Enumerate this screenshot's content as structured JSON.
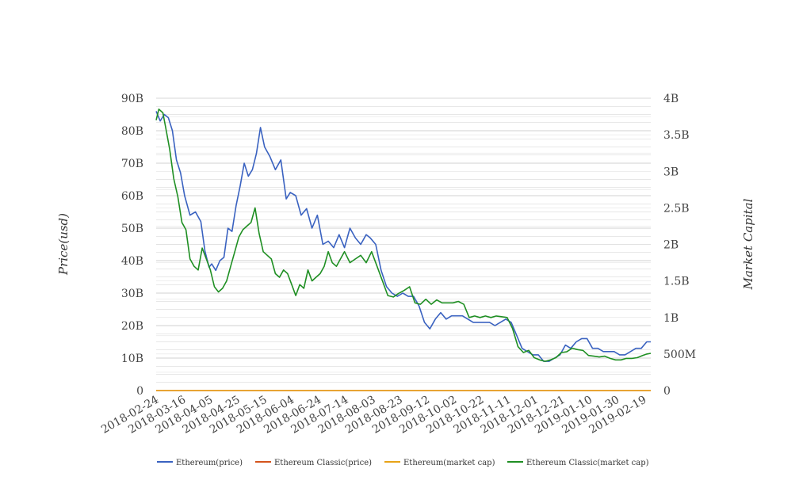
{
  "chart_data": {
    "type": "line",
    "title": "",
    "ylabel_left": "Price(usd)",
    "ylabel_right": "Market Capital",
    "ylim_left": [
      0,
      90000000000
    ],
    "ylim_right": [
      0,
      4000000000
    ],
    "left_tick_labels": [
      "0",
      "10B",
      "20B",
      "30B",
      "40B",
      "50B",
      "60B",
      "70B",
      "80B",
      "90B"
    ],
    "right_tick_labels": [
      "0",
      "500M",
      "1B",
      "1.5B",
      "2B",
      "2.5B",
      "3B",
      "3.5B",
      "4B"
    ],
    "x_tick_labels": [
      "2018-02-24",
      "2018-03-16",
      "2018-04-05",
      "2018-04-25",
      "2018-05-15",
      "2018-06-04",
      "2018-06-24",
      "2018-07-14",
      "2018-08-03",
      "2018-08-23",
      "2018-09-12",
      "2018-10-02",
      "2018-10-22",
      "2018-11-11",
      "2018-12-01",
      "2018-12-21",
      "2019-01-10",
      "2019-01-30",
      "2019-02-19"
    ],
    "x_range": [
      "2018-02-24",
      "2019-02-24"
    ],
    "grid": true,
    "legend_position": "bottom",
    "series": [
      {
        "name": "Ethereum(price)",
        "axis": "left",
        "color": "#3a62c0",
        "x": [
          "2018-02-24",
          "2018-02-27",
          "2018-03-02",
          "2018-03-05",
          "2018-03-08",
          "2018-03-11",
          "2018-03-14",
          "2018-03-17",
          "2018-03-21",
          "2018-03-25",
          "2018-03-29",
          "2018-04-01",
          "2018-04-04",
          "2018-04-06",
          "2018-04-09",
          "2018-04-12",
          "2018-04-15",
          "2018-04-18",
          "2018-04-21",
          "2018-04-24",
          "2018-04-27",
          "2018-04-30",
          "2018-05-03",
          "2018-05-06",
          "2018-05-09",
          "2018-05-12",
          "2018-05-15",
          "2018-05-19",
          "2018-05-23",
          "2018-05-27",
          "2018-05-31",
          "2018-06-03",
          "2018-06-07",
          "2018-06-11",
          "2018-06-15",
          "2018-06-19",
          "2018-06-23",
          "2018-06-27",
          "2018-07-01",
          "2018-07-05",
          "2018-07-09",
          "2018-07-13",
          "2018-07-17",
          "2018-07-21",
          "2018-07-25",
          "2018-07-29",
          "2018-08-01",
          "2018-08-05",
          "2018-08-09",
          "2018-08-13",
          "2018-08-17",
          "2018-08-21",
          "2018-08-25",
          "2018-08-29",
          "2018-09-02",
          "2018-09-06",
          "2018-09-10",
          "2018-09-14",
          "2018-09-18",
          "2018-09-22",
          "2018-09-26",
          "2018-09-30",
          "2018-10-04",
          "2018-10-08",
          "2018-10-12",
          "2018-10-16",
          "2018-10-20",
          "2018-10-24",
          "2018-10-28",
          "2018-11-01",
          "2018-11-05",
          "2018-11-09",
          "2018-11-13",
          "2018-11-17",
          "2018-11-21",
          "2018-11-25",
          "2018-11-29",
          "2018-12-03",
          "2018-12-07",
          "2018-12-11",
          "2018-12-15",
          "2018-12-19",
          "2018-12-23",
          "2018-12-27",
          "2018-12-31",
          "2019-01-04",
          "2019-01-08",
          "2019-01-12",
          "2019-01-16",
          "2019-01-20",
          "2019-01-24",
          "2019-01-28",
          "2019-02-01",
          "2019-02-05",
          "2019-02-09",
          "2019-02-13",
          "2019-02-17",
          "2019-02-21",
          "2019-02-24"
        ],
        "y": [
          86000000000,
          83000000000,
          85000000000,
          84000000000,
          80000000000,
          71000000000,
          67000000000,
          60000000000,
          54000000000,
          55000000000,
          52000000000,
          43000000000,
          38000000000,
          39000000000,
          37000000000,
          40000000000,
          41000000000,
          50000000000,
          49000000000,
          57000000000,
          63000000000,
          70000000000,
          66000000000,
          68000000000,
          73000000000,
          81000000000,
          75000000000,
          72000000000,
          68000000000,
          71000000000,
          59000000000,
          61000000000,
          60000000000,
          54000000000,
          56000000000,
          50000000000,
          54000000000,
          45000000000,
          46000000000,
          44000000000,
          48000000000,
          44000000000,
          50000000000,
          47000000000,
          45000000000,
          48000000000,
          47000000000,
          45000000000,
          37000000000,
          32000000000,
          30000000000,
          29000000000,
          30000000000,
          29000000000,
          29000000000,
          26000000000,
          21000000000,
          19000000000,
          22000000000,
          24000000000,
          22000000000,
          23000000000,
          23000000000,
          23000000000,
          22000000000,
          21000000000,
          21000000000,
          21000000000,
          21000000000,
          20000000000,
          21000000000,
          22000000000,
          21000000000,
          17000000000,
          13000000000,
          12000000000,
          11000000000,
          11000000000,
          9000000000,
          9000000000,
          10000000000,
          11000000000,
          14000000000,
          13000000000,
          15000000000,
          16000000000,
          16000000000,
          13000000000,
          13000000000,
          12000000000,
          12000000000,
          12000000000,
          11000000000,
          11000000000,
          12000000000,
          13000000000,
          13000000000,
          15000000000,
          15000000000
        ]
      },
      {
        "name": "Ethereum Classic(price)",
        "axis": "left",
        "color": "#d4541c",
        "x": [
          "2018-02-24",
          "2019-02-24"
        ],
        "y": [
          0,
          0
        ]
      },
      {
        "name": "Ethereum(market cap)",
        "axis": "left",
        "color": "#e8a317",
        "x": [
          "2018-02-24",
          "2019-02-24"
        ],
        "y": [
          0,
          0
        ]
      },
      {
        "name": "Ethereum Classic(market cap)",
        "axis": "right",
        "color": "#1f8f23",
        "x": [
          "2018-02-24",
          "2018-02-26",
          "2018-03-01",
          "2018-03-03",
          "2018-03-06",
          "2018-03-09",
          "2018-03-12",
          "2018-03-15",
          "2018-03-18",
          "2018-03-21",
          "2018-03-24",
          "2018-03-27",
          "2018-03-30",
          "2018-04-02",
          "2018-04-05",
          "2018-04-08",
          "2018-04-11",
          "2018-04-14",
          "2018-04-17",
          "2018-04-20",
          "2018-04-23",
          "2018-04-26",
          "2018-04-29",
          "2018-05-02",
          "2018-05-05",
          "2018-05-08",
          "2018-05-11",
          "2018-05-14",
          "2018-05-17",
          "2018-05-20",
          "2018-05-23",
          "2018-05-26",
          "2018-05-29",
          "2018-06-01",
          "2018-06-04",
          "2018-06-07",
          "2018-06-10",
          "2018-06-13",
          "2018-06-16",
          "2018-06-19",
          "2018-06-22",
          "2018-06-25",
          "2018-06-28",
          "2018-07-01",
          "2018-07-04",
          "2018-07-07",
          "2018-07-10",
          "2018-07-13",
          "2018-07-17",
          "2018-07-21",
          "2018-07-25",
          "2018-07-29",
          "2018-08-02",
          "2018-08-06",
          "2018-08-10",
          "2018-08-14",
          "2018-08-18",
          "2018-08-22",
          "2018-08-26",
          "2018-08-30",
          "2018-09-03",
          "2018-09-07",
          "2018-09-11",
          "2018-09-15",
          "2018-09-19",
          "2018-09-23",
          "2018-09-27",
          "2018-10-01",
          "2018-10-05",
          "2018-10-09",
          "2018-10-13",
          "2018-10-17",
          "2018-10-21",
          "2018-10-25",
          "2018-10-29",
          "2018-11-02",
          "2018-11-06",
          "2018-11-10",
          "2018-11-14",
          "2018-11-18",
          "2018-11-22",
          "2018-11-26",
          "2018-11-30",
          "2018-12-04",
          "2018-12-08",
          "2018-12-12",
          "2018-12-16",
          "2018-12-20",
          "2018-12-24",
          "2018-12-28",
          "2019-01-01",
          "2019-01-05",
          "2019-01-09",
          "2019-01-13",
          "2019-01-17",
          "2019-01-21",
          "2019-01-25",
          "2019-01-29",
          "2019-02-02",
          "2019-02-06",
          "2019-02-10",
          "2019-02-14",
          "2019-02-18",
          "2019-02-21",
          "2019-02-24"
        ],
        "y": [
          3700000000,
          3850000000,
          3800000000,
          3600000000,
          3300000000,
          2900000000,
          2650000000,
          2300000000,
          2200000000,
          1800000000,
          1700000000,
          1650000000,
          1950000000,
          1800000000,
          1650000000,
          1420000000,
          1350000000,
          1400000000,
          1500000000,
          1700000000,
          1900000000,
          2100000000,
          2200000000,
          2250000000,
          2300000000,
          2500000000,
          2150000000,
          1900000000,
          1850000000,
          1800000000,
          1600000000,
          1550000000,
          1650000000,
          1600000000,
          1450000000,
          1300000000,
          1450000000,
          1400000000,
          1650000000,
          1500000000,
          1550000000,
          1600000000,
          1700000000,
          1900000000,
          1750000000,
          1700000000,
          1800000000,
          1900000000,
          1750000000,
          1800000000,
          1850000000,
          1750000000,
          1900000000,
          1700000000,
          1500000000,
          1300000000,
          1280000000,
          1330000000,
          1370000000,
          1420000000,
          1200000000,
          1180000000,
          1250000000,
          1180000000,
          1240000000,
          1200000000,
          1200000000,
          1200000000,
          1220000000,
          1180000000,
          1000000000,
          1020000000,
          1000000000,
          1020000000,
          1000000000,
          1020000000,
          1010000000,
          1000000000,
          850000000,
          600000000,
          520000000,
          550000000,
          450000000,
          420000000,
          400000000,
          420000000,
          450000000,
          520000000,
          530000000,
          580000000,
          560000000,
          550000000,
          480000000,
          470000000,
          460000000,
          470000000,
          440000000,
          420000000,
          420000000,
          440000000,
          440000000,
          450000000,
          480000000,
          500000000,
          510000000
        ]
      }
    ]
  }
}
